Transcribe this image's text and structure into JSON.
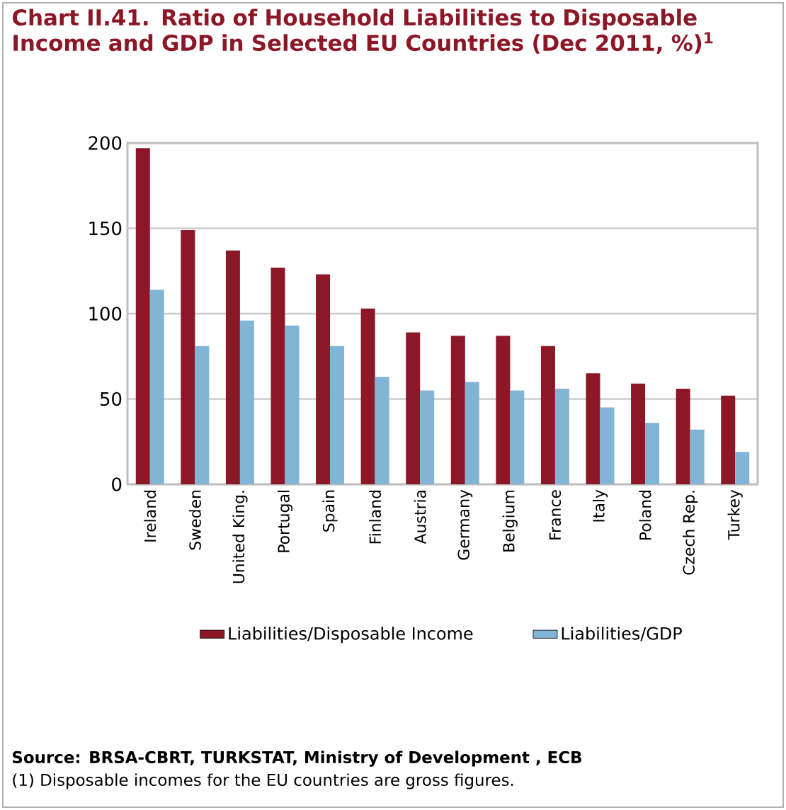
{
  "chart_data": {
    "type": "bar",
    "title": "Chart II.41. Ratio of Household Liabilities to Disposable Income and GDP in Selected EU Countries (Dec 2011, %)$^{1}$",
    "categories": [
      "Ireland",
      "Sweden",
      "United King.",
      "Portugal",
      "Spain",
      "Finland",
      "Austria",
      "Germany",
      "Belgium",
      "France",
      "Italy",
      "Poland",
      "Czech Rep.",
      "Turkey"
    ],
    "series": [
      {
        "name": "Liabilities/Disposable  Income",
        "color": "#8c1827",
        "values": [
          197,
          149,
          137,
          127,
          123,
          103,
          89,
          87,
          87,
          81,
          65,
          59,
          56,
          52
        ]
      },
      {
        "name": "Liabilities/GDP",
        "color": "#82b4d6",
        "values": [
          114,
          81,
          96,
          93,
          81,
          63,
          55,
          60,
          55,
          56,
          45,
          36,
          32,
          19
        ]
      }
    ],
    "ylim": [
      0,
      200
    ],
    "yticks": [
      0,
      50,
      100,
      150,
      200
    ],
    "grid": "y",
    "legend": "bottom",
    "annotations": [
      "**Source: BRSA-CBRT, TURKSTAT, Ministry of Development , ECB**",
      "(1) Disposable incomes for the EU countries are gross figures."
    ]
  }
}
